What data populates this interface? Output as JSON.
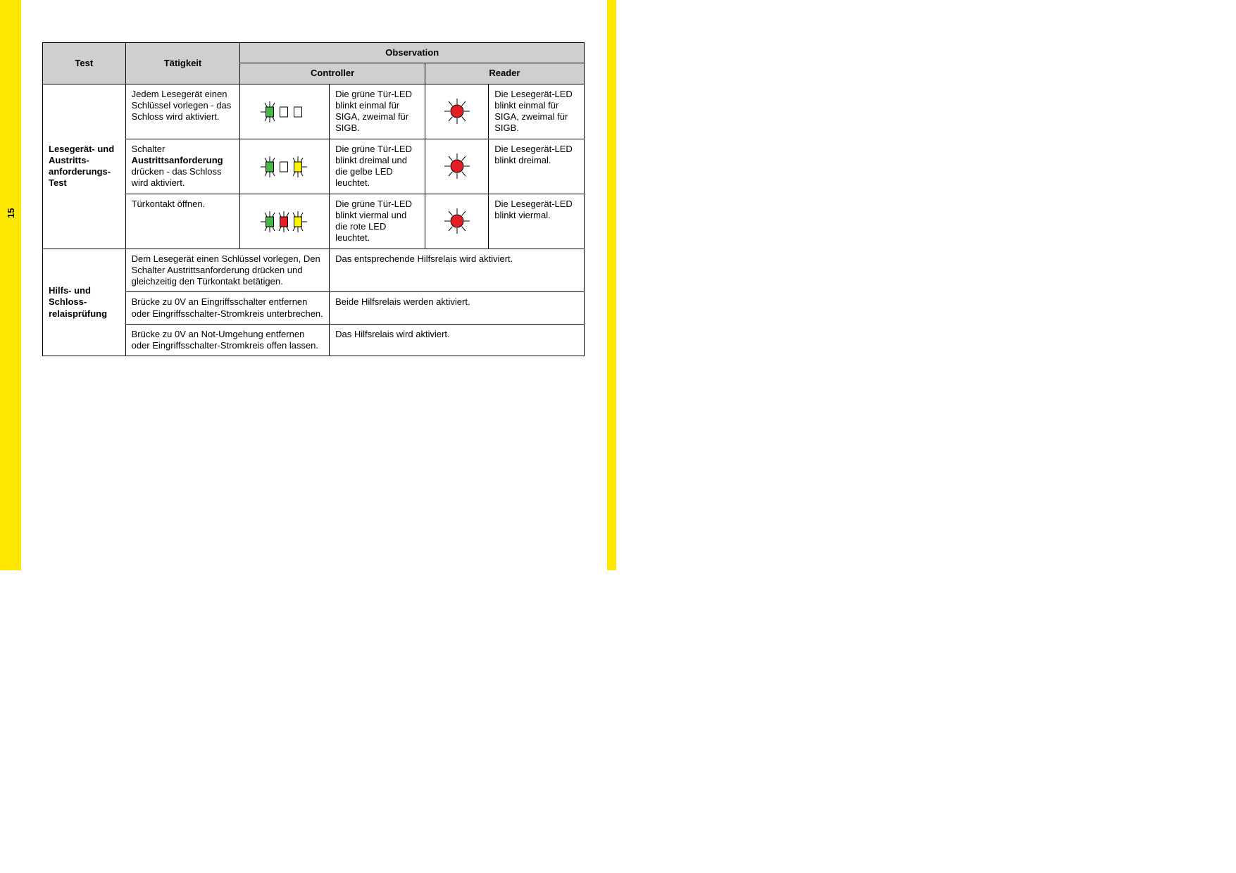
{
  "page_number": "15",
  "colors": {
    "yellow": "#ffe800",
    "header_bg": "#cfcfcf",
    "green": "#49b648",
    "red": "#e31e24",
    "amber": "#ffc000",
    "yellow_led": "#fff200",
    "ray": "#000000",
    "outline": "#000000"
  },
  "headers": {
    "test": "Test",
    "activity": "Tätigkeit",
    "observation": "Observation",
    "controller": "Controller",
    "reader": "Reader"
  },
  "group1": {
    "label": "Lesegerät- und Austritts-anforderungs-Test",
    "rows": [
      {
        "activity_plain": "Jedem Lesegerät einen Schlüssel vorlegen - das Schloss wird aktiviert.",
        "activity_bold": "",
        "activity_after": "",
        "ctl_icon": {
          "rays": [
            true,
            false,
            false
          ],
          "green": "filled",
          "red": "hollow",
          "yellow": "hollow"
        },
        "ctl_text": "Die grüne Tür-LED blinkt einmal für SIGA, zweimal für SIGB.",
        "rdr_icon": {
          "red": true
        },
        "rdr_text": "Die Lesegerät-LED blinkt einmal für SIGA, zweimal für SIGB."
      },
      {
        "activity_plain": "Schalter ",
        "activity_bold": "Austrittsanforderung",
        "activity_after": " drücken - das Schloss wird aktiviert.",
        "ctl_icon": {
          "rays": [
            true,
            false,
            true
          ],
          "green": "filled",
          "red": "hollow",
          "yellow": "filled"
        },
        "ctl_text": "Die grüne Tür-LED blinkt dreimal und die gelbe LED leuchtet.",
        "rdr_icon": {
          "red": true
        },
        "rdr_text": "Die Lesegerät-LED blinkt dreimal."
      },
      {
        "activity_plain": "Türkontakt öffnen.",
        "activity_bold": "",
        "activity_after": "",
        "ctl_icon": {
          "rays": [
            true,
            true,
            true
          ],
          "green": "filled",
          "red": "filled",
          "yellow": "filled"
        },
        "ctl_text": "Die grüne Tür-LED blinkt viermal und die rote LED leuchtet.",
        "rdr_icon": {
          "red": true
        },
        "rdr_text": "Die Lesegerät-LED blinkt viermal."
      }
    ]
  },
  "group2": {
    "label": "Hilfs- und Schloss-relaisprüfung",
    "rows": [
      {
        "activity": "Dem Lesegerät einen Schlüssel vorlegen, Den Schalter Austrittsanforderung drücken und gleichzeitig den Türkontakt betätigen.",
        "observation": "Das entsprechende Hilfsrelais wird aktiviert."
      },
      {
        "activity": "Brücke zu 0V an Eingriffsschalter entfernen oder Eingriffsschalter-Stromkreis unterbrechen.",
        "observation": "Beide Hilfsrelais werden aktiviert."
      },
      {
        "activity": "Brücke zu 0V an Not-Umgehung entfernen oder Eingriffsschalter-Stromkreis offen lassen.",
        "observation": "Das Hilfsrelais wird aktiviert."
      }
    ]
  }
}
